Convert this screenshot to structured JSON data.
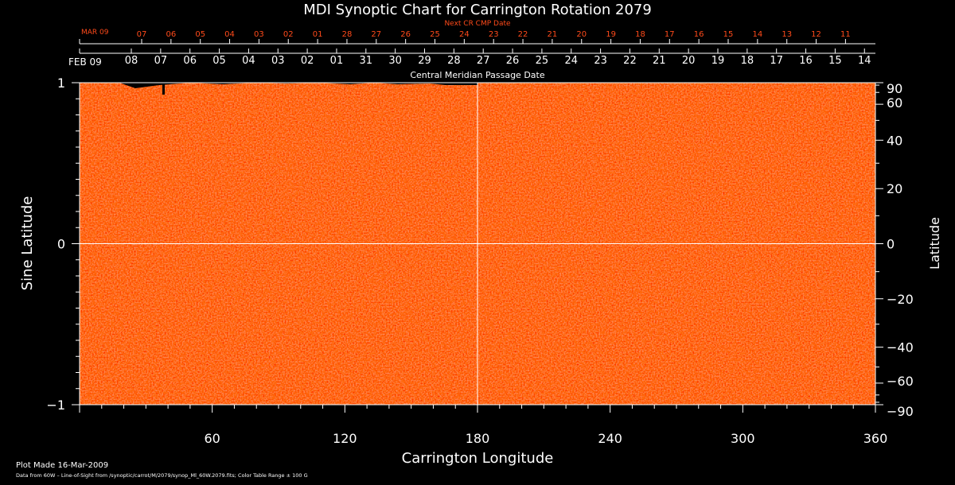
{
  "chart_data": {
    "type": "heatmap",
    "title": "MDI Synoptic Chart for Carrington Rotation 2079",
    "xlabel": "Carrington Longitude",
    "ylabel_left": "Sine Latitude",
    "ylabel_right": "Latitude",
    "xlim": [
      0,
      360
    ],
    "ylim": [
      -1,
      1
    ],
    "x_ticks": [
      60,
      120,
      180,
      240,
      300,
      360
    ],
    "y_left_ticks": [
      -1,
      0,
      1
    ],
    "y_left_tick_labels": [
      "−1",
      "0",
      "1"
    ],
    "y_right_ticks": [
      -90,
      -60,
      -40,
      -20,
      0,
      20,
      40,
      60,
      90
    ],
    "y_right_tick_labels": [
      "−90",
      "−60",
      "−40",
      "−20",
      "0",
      "20",
      "40",
      "60",
      "90"
    ],
    "reference_lines": {
      "longitude": 180,
      "sine_latitude": 0
    },
    "cmp_axis": {
      "label": "Central Meridian Passage Date",
      "month_start_label": "FEB 09",
      "dates": [
        "08",
        "07",
        "06",
        "05",
        "04",
        "03",
        "02",
        "01",
        "31",
        "30",
        "29",
        "28",
        "27",
        "26",
        "25",
        "24",
        "23",
        "22",
        "21",
        "20",
        "19",
        "18",
        "17",
        "16",
        "15",
        "14"
      ]
    },
    "next_cmp_axis": {
      "label": "Next CR CMP Date",
      "month_start_label": "MAR 09",
      "dates": [
        "07",
        "06",
        "05",
        "04",
        "03",
        "02",
        "01",
        "28",
        "27",
        "26",
        "25",
        "24",
        "23",
        "22",
        "21",
        "20",
        "19",
        "18",
        "17",
        "16",
        "15",
        "14",
        "13",
        "12",
        "11"
      ]
    },
    "colors": {
      "field_base": "#ff3f0a",
      "text": "#ffffff",
      "next_cmp_text": "#ff4a1a"
    }
  },
  "footer": {
    "plot_made": "Plot Made 16-Mar-2009",
    "source": "Data from 60W – Line-of-Sight from /synoptic/carrot/M/2079/synop_Ml_60W.2079.fits; Color Table Range ± 100 G"
  }
}
